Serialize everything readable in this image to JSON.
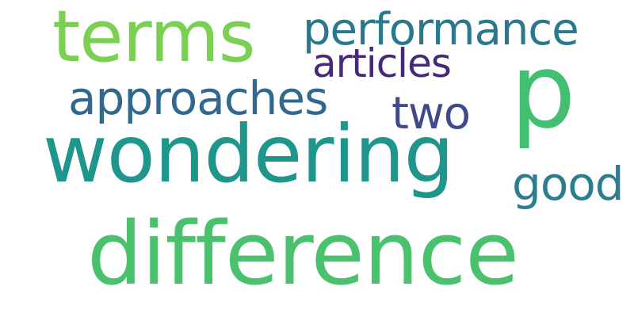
{
  "words": [
    {
      "text": "terms",
      "color": "#7ad151"
    },
    {
      "text": "performance",
      "color": "#2a788e"
    },
    {
      "text": "articles",
      "color": "#482878"
    },
    {
      "text": "p",
      "color": "#43bf71"
    },
    {
      "text": "approaches",
      "color": "#31688e"
    },
    {
      "text": "two",
      "color": "#3e4a89"
    },
    {
      "text": "wondering",
      "color": "#1f968b"
    },
    {
      "text": "good",
      "color": "#2c7e8e"
    },
    {
      "text": "difference",
      "color": "#4ac16d"
    }
  ]
}
